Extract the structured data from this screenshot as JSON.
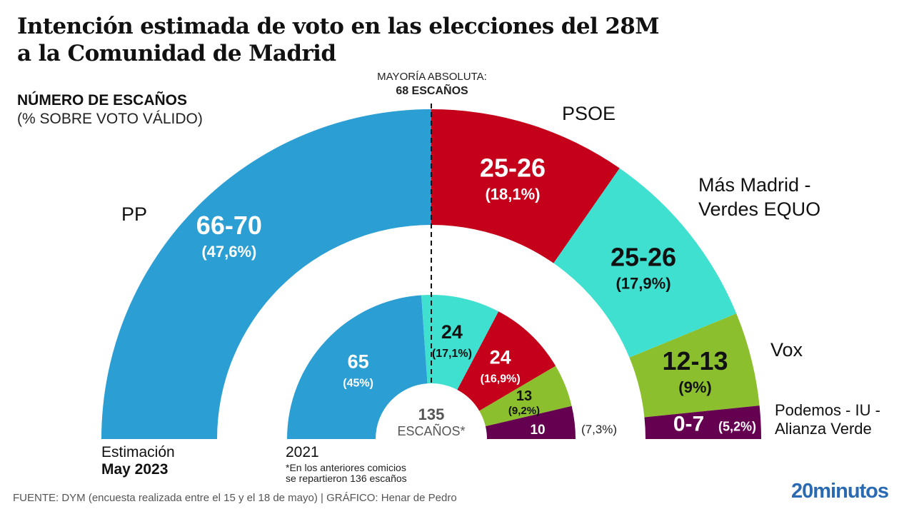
{
  "header": {
    "title_line1": "Intención estimada de voto en las elecciones del 28M",
    "title_line2": "a la Comunidad de Madrid",
    "subtitle_main": "NÚMERO DE ESCAÑOS",
    "subtitle_sub": "(% SOBRE VOTO VÁLIDO)"
  },
  "majority": {
    "label": "MAYORÍA ABSOLUTA:",
    "value": "68 ESCAÑOS"
  },
  "chart_data": {
    "type": "pie",
    "subtype": "parliament-semicircle",
    "title": "Intención estimada de voto en las elecciones del 28M a la Comunidad de Madrid",
    "unit": "seats",
    "majority_threshold": 68,
    "rings": [
      {
        "name": "Estimación May 2023",
        "total_seats": 136,
        "segments": [
          {
            "party": "PP",
            "seats_label": "66-70",
            "pct_label": "(47,6%)",
            "seats_min": 66,
            "seats_max": 70,
            "seats_drawn": 68,
            "vote_pct": 47.6,
            "color": "#2b9ed3",
            "text_color": "#ffffff"
          },
          {
            "party": "PSOE",
            "seats_label": "25-26",
            "pct_label": "(18,1%)",
            "seats_min": 25,
            "seats_max": 26,
            "seats_drawn": 26.3,
            "vote_pct": 18.1,
            "color": "#c4001a",
            "text_color": "#ffffff"
          },
          {
            "party": "Más Madrid - Verdes EQUO",
            "seats_label": "25-26",
            "pct_label": "(17,9%)",
            "seats_min": 25,
            "seats_max": 26,
            "seats_drawn": 24.8,
            "vote_pct": 17.9,
            "color": "#40e0d0",
            "text_color": "#111111"
          },
          {
            "party": "Vox",
            "seats_label": "12-13",
            "pct_label": "(9%)",
            "seats_min": 12,
            "seats_max": 13,
            "seats_drawn": 12.5,
            "vote_pct": 9.0,
            "color": "#8cbf2e",
            "text_color": "#111111"
          },
          {
            "party": "Podemos - IU - Alianza Verde",
            "seats_label": "0-7",
            "pct_label": "(5,2%)",
            "seats_min": 0,
            "seats_max": 7,
            "seats_drawn": 4.4,
            "vote_pct": 5.2,
            "color": "#650050",
            "text_color": "#ffffff"
          }
        ]
      },
      {
        "name": "2021",
        "total_seats": 136,
        "center_label": "135",
        "center_sublabel": "ESCAÑOS*",
        "segments": [
          {
            "party": "PP",
            "seats_label": "65",
            "pct_label": "(45%)",
            "seats": 65,
            "vote_pct": 45.0,
            "color": "#2b9ed3",
            "text_color": "#ffffff"
          },
          {
            "party": "Más Madrid - Verdes EQUO",
            "seats_label": "24",
            "pct_label": "(17,1%)",
            "seats": 24,
            "vote_pct": 17.1,
            "color": "#40e0d0",
            "text_color": "#111111"
          },
          {
            "party": "PSOE",
            "seats_label": "24",
            "pct_label": "(16,9%)",
            "seats": 24,
            "vote_pct": 16.9,
            "color": "#c4001a",
            "text_color": "#ffffff"
          },
          {
            "party": "Vox",
            "seats_label": "13",
            "pct_label": "(9,2%)",
            "seats": 13,
            "vote_pct": 9.2,
            "color": "#8cbf2e",
            "text_color": "#111111"
          },
          {
            "party": "Podemos - IU - Alianza Verde",
            "seats_label": "10",
            "pct_label": "(7,3%)",
            "seats": 10,
            "vote_pct": 7.3,
            "color": "#650050",
            "text_color": "#ffffff"
          }
        ]
      }
    ]
  },
  "party_labels": {
    "pp": "PP",
    "psoe": "PSOE",
    "mas_madrid_line1": "Más Madrid -",
    "mas_madrid_line2": "Verdes EQUO",
    "vox": "Vox",
    "podemos_line1": "Podemos - IU -",
    "podemos_line2": "Alianza Verde"
  },
  "captions": {
    "estimate_line1": "Estimación",
    "estimate_line2": "May 2023",
    "previous_year": "2021",
    "previous_note_line1": "*En los anteriores comicios",
    "previous_note_line2": "se repartieron 136 escaños"
  },
  "footer": {
    "source": "FUENTE: DYM (encuesta realizada entre el 15 y el 18 de mayo)  |  GRÁFICO: Henar de Pedro",
    "logo": "20minutos"
  }
}
